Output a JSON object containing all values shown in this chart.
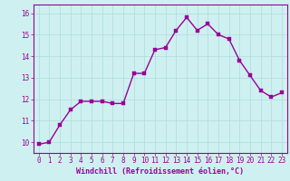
{
  "x": [
    0,
    1,
    2,
    3,
    4,
    5,
    6,
    7,
    8,
    9,
    10,
    11,
    12,
    13,
    14,
    15,
    16,
    17,
    18,
    19,
    20,
    21,
    22,
    23
  ],
  "y": [
    9.9,
    10.0,
    10.8,
    11.5,
    11.9,
    11.9,
    11.9,
    11.8,
    11.8,
    13.2,
    13.2,
    14.3,
    14.4,
    15.2,
    15.8,
    15.2,
    15.5,
    15.0,
    14.8,
    13.8,
    13.1,
    12.4,
    12.1,
    12.3
  ],
  "bg_color": "#cff0f0",
  "line_color": "#990099",
  "marker_color": "#990099",
  "grid_color": "#aadddd",
  "xlabel": "Windchill (Refroidissement éolien,°C)",
  "xlabel_color": "#990099",
  "tick_color": "#990099",
  "spine_color": "#990099",
  "ylim": [
    9.5,
    16.4
  ],
  "xlim": [
    -0.5,
    23.5
  ],
  "yticks": [
    10,
    11,
    12,
    13,
    14,
    15,
    16
  ],
  "xticks": [
    0,
    1,
    2,
    3,
    4,
    5,
    6,
    7,
    8,
    9,
    10,
    11,
    12,
    13,
    14,
    15,
    16,
    17,
    18,
    19,
    20,
    21,
    22,
    23
  ],
  "line_width": 1.0,
  "marker_size": 2.2,
  "tick_fontsize": 5.5,
  "xlabel_fontsize": 6.0
}
